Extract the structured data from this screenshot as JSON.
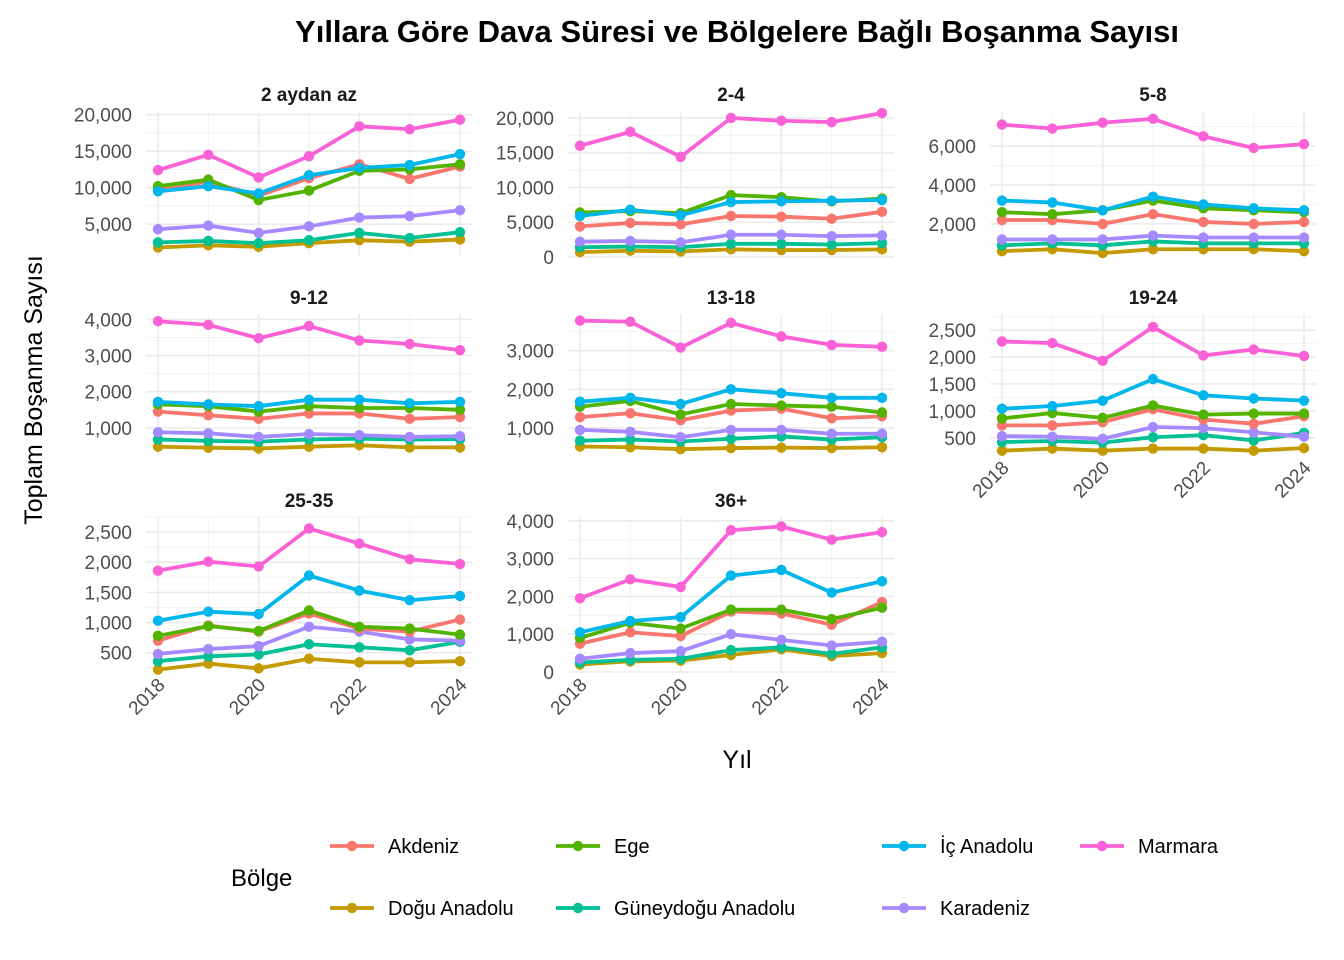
{
  "chart_data": {
    "type": "line",
    "title": "Yıllara Göre Dava Süresi ve Bölgelere Bağlı Boşanma Sayısı",
    "xlabel": "Yıl",
    "ylabel": "Toplam Boşanma Sayısı",
    "x": [
      2018,
      2019,
      2020,
      2021,
      2022,
      2023,
      2024
    ],
    "x_ticks": [
      2018,
      2020,
      2022,
      2024
    ],
    "grid": true,
    "legend": {
      "title": "Bölge",
      "position": "bottom",
      "entries": [
        "Akdeniz",
        "Ege",
        "İç Anadolu",
        "Marmara",
        "Doğu Anadolu",
        "Güneydoğu Anadolu",
        "Karadeniz"
      ]
    },
    "colors": {
      "Akdeniz": "#F8766D",
      "Ege": "#53B400",
      "İç Anadolu": "#00B6EB",
      "Marmara": "#FB61D7",
      "Doğu Anadolu": "#C49A00",
      "Güneydoğu Anadolu": "#00C094",
      "Karadeniz": "#A58AFF"
    },
    "panels": [
      {
        "title": "2 aydan az",
        "ylim": [
          500,
          20500
        ],
        "y_ticks": [
          5000,
          10000,
          15000,
          20000
        ],
        "y_tick_labels": [
          "5,000",
          "10,000",
          "15,000",
          "20,000"
        ],
        "series": [
          {
            "name": "Akdeniz",
            "values": [
              9900,
              10800,
              8900,
              11300,
              13200,
              11200,
              12900
            ]
          },
          {
            "name": "Ege",
            "values": [
              10200,
              11100,
              8300,
              9600,
              12300,
              12500,
              13200
            ]
          },
          {
            "name": "İç Anadolu",
            "values": [
              9500,
              10200,
              9200,
              11700,
              12700,
              13100,
              14600
            ]
          },
          {
            "name": "Marmara",
            "values": [
              12400,
              14500,
              11400,
              14300,
              18400,
              18000,
              19300
            ]
          },
          {
            "name": "Doğu Anadolu",
            "values": [
              1800,
              2100,
              1900,
              2400,
              2800,
              2600,
              2900
            ]
          },
          {
            "name": "Güneydoğu Anadolu",
            "values": [
              2500,
              2700,
              2400,
              2800,
              3800,
              3100,
              3900
            ]
          },
          {
            "name": "Karadeniz",
            "values": [
              4300,
              4800,
              3800,
              4700,
              5900,
              6100,
              6900
            ]
          }
        ]
      },
      {
        "title": "2-4",
        "ylim": [
          0,
          21000
        ],
        "y_ticks": [
          0,
          5000,
          10000,
          15000,
          20000
        ],
        "y_tick_labels": [
          "0",
          "5,000",
          "10,000",
          "15,000",
          "20,000"
        ],
        "series": [
          {
            "name": "Akdeniz",
            "values": [
              4400,
              4900,
              4700,
              5900,
              5800,
              5500,
              6500
            ]
          },
          {
            "name": "Ege",
            "values": [
              6400,
              6600,
              6300,
              8900,
              8600,
              8000,
              8400
            ]
          },
          {
            "name": "İç Anadolu",
            "values": [
              5900,
              6800,
              6000,
              7900,
              8000,
              8100,
              8200
            ]
          },
          {
            "name": "Marmara",
            "values": [
              16000,
              18000,
              14400,
              20000,
              19600,
              19400,
              20700
            ]
          },
          {
            "name": "Doğu Anadolu",
            "values": [
              700,
              900,
              800,
              1100,
              1000,
              1000,
              1100
            ]
          },
          {
            "name": "Güneydoğu Anadolu",
            "values": [
              1400,
              1500,
              1400,
              1900,
              1900,
              1800,
              2000
            ]
          },
          {
            "name": "Karadeniz",
            "values": [
              2200,
              2300,
              2100,
              3200,
              3200,
              3000,
              3100
            ]
          }
        ]
      },
      {
        "title": "5-8",
        "ylim": [
          300,
          7800
        ],
        "y_ticks": [
          2000,
          4000,
          6000
        ],
        "y_tick_labels": [
          "2,000",
          "4,000",
          "6,000"
        ],
        "series": [
          {
            "name": "Akdeniz",
            "values": [
              2200,
              2200,
              2000,
              2500,
              2100,
              2000,
              2100
            ]
          },
          {
            "name": "Ege",
            "values": [
              2600,
              2500,
              2700,
              3200,
              2800,
              2700,
              2600
            ]
          },
          {
            "name": "İç Anadolu",
            "values": [
              3200,
              3100,
              2700,
              3400,
              3000,
              2800,
              2700
            ]
          },
          {
            "name": "Marmara",
            "values": [
              7100,
              6900,
              7200,
              7400,
              6500,
              5900,
              6100
            ]
          },
          {
            "name": "Doğu Anadolu",
            "values": [
              600,
              700,
              500,
              700,
              700,
              700,
              600
            ]
          },
          {
            "name": "Güneydoğu Anadolu",
            "values": [
              900,
              1000,
              900,
              1100,
              1000,
              1000,
              1000
            ]
          },
          {
            "name": "Karadeniz",
            "values": [
              1200,
              1200,
              1200,
              1400,
              1300,
              1300,
              1300
            ]
          }
        ]
      },
      {
        "title": "9-12",
        "ylim": [
          250,
          4150
        ],
        "y_ticks": [
          1000,
          2000,
          3000,
          4000
        ],
        "y_tick_labels": [
          "1,000",
          "2,000",
          "3,000",
          "4,000"
        ],
        "series": [
          {
            "name": "Akdeniz",
            "values": [
              1450,
              1350,
              1250,
              1400,
              1400,
              1250,
              1300
            ]
          },
          {
            "name": "Ege",
            "values": [
              1650,
              1600,
              1450,
              1600,
              1550,
              1550,
              1500
            ]
          },
          {
            "name": "İç Anadolu",
            "values": [
              1720,
              1650,
              1600,
              1780,
              1780,
              1680,
              1720
            ]
          },
          {
            "name": "Marmara",
            "values": [
              3950,
              3850,
              3480,
              3820,
              3420,
              3320,
              3150
            ]
          },
          {
            "name": "Doğu Anadolu",
            "values": [
              480,
              450,
              430,
              480,
              520,
              460,
              460
            ]
          },
          {
            "name": "Güneydoğu Anadolu",
            "values": [
              680,
              640,
              620,
              680,
              700,
              680,
              690
            ]
          },
          {
            "name": "Karadeniz",
            "values": [
              880,
              850,
              750,
              830,
              800,
              750,
              770
            ]
          }
        ]
      },
      {
        "title": "13-18",
        "ylim": [
          300,
          3950
        ],
        "y_ticks": [
          1000,
          2000,
          3000
        ],
        "y_tick_labels": [
          "1,000",
          "2,000",
          "3,000"
        ],
        "series": [
          {
            "name": "Akdeniz",
            "values": [
              1280,
              1380,
              1200,
              1450,
              1500,
              1250,
              1300
            ]
          },
          {
            "name": "Ege",
            "values": [
              1550,
              1700,
              1350,
              1620,
              1580,
              1550,
              1400
            ]
          },
          {
            "name": "İç Anadolu",
            "values": [
              1680,
              1780,
              1620,
              2000,
              1900,
              1780,
              1780
            ]
          },
          {
            "name": "Marmara",
            "values": [
              3780,
              3750,
              3080,
              3720,
              3370,
              3150,
              3100
            ]
          },
          {
            "name": "Doğu Anadolu",
            "values": [
              520,
              500,
              450,
              480,
              490,
              480,
              500
            ]
          },
          {
            "name": "Güneydoğu Anadolu",
            "values": [
              670,
              700,
              650,
              720,
              780,
              700,
              760
            ]
          },
          {
            "name": "Karadeniz",
            "values": [
              950,
              900,
              760,
              950,
              950,
              850,
              850
            ]
          }
        ]
      },
      {
        "title": "19-24",
        "ylim": [
          180,
          2800
        ],
        "y_ticks": [
          500,
          1000,
          1500,
          2000,
          2500
        ],
        "y_tick_labels": [
          "500",
          "1,000",
          "1,500",
          "2,000",
          "2,500"
        ],
        "series": [
          {
            "name": "Akdeniz",
            "values": [
              730,
              730,
              790,
              1030,
              840,
              760,
              900
            ]
          },
          {
            "name": "Ege",
            "values": [
              860,
              960,
              870,
              1100,
              930,
              950,
              950
            ]
          },
          {
            "name": "İç Anadolu",
            "values": [
              1040,
              1090,
              1190,
              1590,
              1290,
              1230,
              1190
            ]
          },
          {
            "name": "Marmara",
            "values": [
              2290,
              2260,
              1930,
              2560,
              2030,
              2140,
              2020
            ]
          },
          {
            "name": "Doğu Anadolu",
            "values": [
              260,
              300,
              260,
              300,
              300,
              260,
              310
            ]
          },
          {
            "name": "Güneydoğu Anadolu",
            "values": [
              420,
              440,
              410,
              510,
              550,
              450,
              590
            ]
          },
          {
            "name": "Karadeniz",
            "values": [
              530,
              520,
              480,
              700,
              680,
              600,
              520
            ]
          }
        ]
      },
      {
        "title": "25-35",
        "ylim": [
          180,
          2750
        ],
        "y_ticks": [
          500,
          1000,
          1500,
          2000,
          2500
        ],
        "y_tick_labels": [
          "500",
          "1,000",
          "1,500",
          "2,000",
          "2,500"
        ],
        "series": [
          {
            "name": "Akdeniz",
            "values": [
              700,
              950,
              850,
              1150,
              900,
              850,
              1050
            ]
          },
          {
            "name": "Ege",
            "values": [
              780,
              940,
              860,
              1200,
              930,
              900,
              800
            ]
          },
          {
            "name": "İç Anadolu",
            "values": [
              1030,
              1180,
              1140,
              1780,
              1530,
              1370,
              1440
            ]
          },
          {
            "name": "Marmara",
            "values": [
              1860,
              2010,
              1930,
              2560,
              2310,
              2050,
              1970
            ]
          },
          {
            "name": "Doğu Anadolu",
            "values": [
              220,
              320,
              240,
              400,
              340,
              340,
              360
            ]
          },
          {
            "name": "Güneydoğu Anadolu",
            "values": [
              360,
              440,
              470,
              640,
              590,
              540,
              680
            ]
          },
          {
            "name": "Karadeniz",
            "values": [
              480,
              560,
              610,
              930,
              850,
              720,
              700
            ]
          }
        ]
      },
      {
        "title": "36+",
        "ylim": [
          0,
          4100
        ],
        "y_ticks": [
          0,
          1000,
          2000,
          3000,
          4000
        ],
        "y_tick_labels": [
          "0",
          "1,000",
          "2,000",
          "3,000",
          "4,000"
        ],
        "series": [
          {
            "name": "Akdeniz",
            "values": [
              750,
              1050,
              950,
              1600,
              1550,
              1250,
              1850
            ]
          },
          {
            "name": "Ege",
            "values": [
              900,
              1300,
              1150,
              1650,
              1650,
              1400,
              1700
            ]
          },
          {
            "name": "İç Anadolu",
            "values": [
              1050,
              1350,
              1450,
              2550,
              2700,
              2100,
              2400
            ]
          },
          {
            "name": "Marmara",
            "values": [
              1950,
              2450,
              2250,
              3750,
              3850,
              3500,
              3700
            ]
          },
          {
            "name": "Doğu Anadolu",
            "values": [
              200,
              280,
              300,
              450,
              600,
              420,
              500
            ]
          },
          {
            "name": "Güneydoğu Anadolu",
            "values": [
              250,
              320,
              350,
              580,
              650,
              480,
              650
            ]
          },
          {
            "name": "Karadeniz",
            "values": [
              350,
              500,
              550,
              1000,
              850,
              700,
              800
            ]
          }
        ]
      }
    ]
  }
}
